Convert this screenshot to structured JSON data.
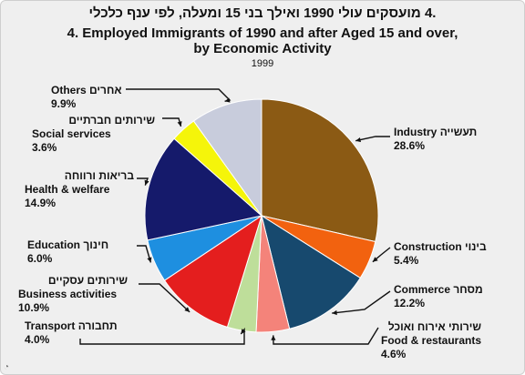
{
  "header": {
    "title_he": ".4  מועסקים עולי 1990 ואילך בני 15 ומעלה, לפי ענף כלכלי",
    "title_en_line1": "4.  Employed Immigrants of 1990 and after Aged 15 and over,",
    "title_en_line2": "by Economic Activity",
    "year": "1999"
  },
  "chart_data": {
    "type": "pie",
    "title": "Employed Immigrants of 1990 and after Aged 15 and over, by Economic Activity",
    "subtitle": "1999",
    "slices": [
      {
        "label_en": "Industry",
        "label_he": "תעשייה",
        "value": 28.6,
        "value_label": "28.6%",
        "color": "#8B5A14"
      },
      {
        "label_en": "Construction",
        "label_he": "בינוי",
        "value": 5.4,
        "value_label": "5.4%",
        "color": "#F2620F"
      },
      {
        "label_en": "Commerce",
        "label_he": "מסחר",
        "value": 12.2,
        "value_label": "12.2%",
        "color": "#17496E"
      },
      {
        "label_en": "Food & restaurants",
        "label_he": "שירותי אירוח ואוכל",
        "value": 4.6,
        "value_label": "4.6%",
        "color": "#F4837A"
      },
      {
        "label_en": "Transport",
        "label_he": "תחבורה",
        "value": 4.0,
        "value_label": "4.0%",
        "color": "#BEDE9A"
      },
      {
        "label_en": "Business activities",
        "label_he": "שירותים עסקיים",
        "value": 10.9,
        "value_label": "10.9%",
        "color": "#E41E1E"
      },
      {
        "label_en": "Education",
        "label_he": "חינוך",
        "value": 6.0,
        "value_label": "6.0%",
        "color": "#1E8FE0"
      },
      {
        "label_en": "Health & welfare",
        "label_he": "בריאות ורווחה",
        "value": 14.9,
        "value_label": "14.9%",
        "color": "#151A6B"
      },
      {
        "label_en": "Social services",
        "label_he": "שירותים חברתיים",
        "value": 3.6,
        "value_label": "3.6%",
        "color": "#F5F50A"
      },
      {
        "label_en": "Others",
        "label_he": "אחרים",
        "value": 9.9,
        "value_label": "9.9%",
        "color": "#C8CCDC"
      }
    ]
  },
  "labels": {
    "industry": {
      "line1_en": "Industry",
      "line1_he": "תעשייה",
      "pct": "28.6%"
    },
    "construction": {
      "line1_he": "בינוי",
      "line1_en": "Construction",
      "pct": "5.4%"
    },
    "commerce": {
      "line1_he": "מסחר",
      "line1_en": "Commerce",
      "pct": "12.2%"
    },
    "food": {
      "line1_he": "שירותי אירוח ואוכל",
      "line2_en": "Food & restaurants",
      "pct": "4.6%"
    },
    "transport": {
      "line1_he": "תחבורה",
      "line1_en": "Transport",
      "pct": "4.0%"
    },
    "business": {
      "line1_he": "שירותים עסקיים",
      "line2_en": "Business activities",
      "pct": "10.9%"
    },
    "education": {
      "line1_he": "חינוך",
      "line1_en": "Education",
      "pct": "6.0%"
    },
    "health": {
      "line1_he": "בריאות ורווחה",
      "line2_en": "Health & welfare",
      "pct": "14.9%"
    },
    "social": {
      "line1_he": "שירותים חברתיים",
      "line2_en": "Social services",
      "pct": "3.6%"
    },
    "others": {
      "line1_he": "אחרים",
      "line1_en": "Others",
      "pct": "9.9%"
    }
  },
  "corner_icon": "logo-icon"
}
